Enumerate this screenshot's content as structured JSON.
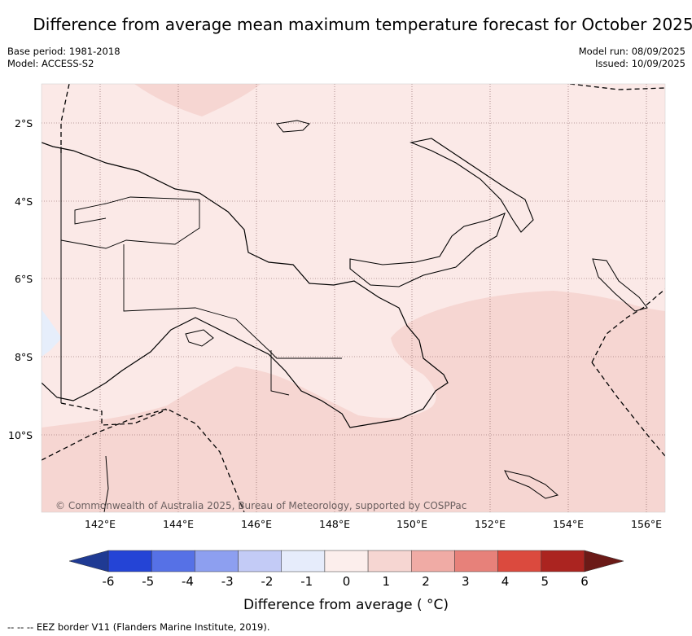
{
  "title": "Difference from average mean maximum temperature forecast for October 2025",
  "meta": {
    "base_period": "Base period: 1981-2018",
    "model": "Model: ACCESS-S2",
    "model_run": "Model run: 08/09/2025",
    "issued": "Issued: 10/09/2025"
  },
  "map": {
    "lat_labels": [
      "2°S",
      "4°S",
      "6°S",
      "8°S",
      "10°S"
    ],
    "lon_labels": [
      "142°E",
      "144°E",
      "146°E",
      "148°E",
      "150°E",
      "152°E",
      "154°E",
      "156°E"
    ],
    "copyright": "© Commonwealth of Australia 2025, Bureau of Meteorology, supported by COSPPac",
    "colors": {
      "anomaly_0_to_1": "#fbe9e7",
      "anomaly_1_to_2": "#f6d6d2",
      "anomaly_minus1_to_0": "#e6eefb"
    }
  },
  "colorbar": {
    "ticks": [
      "-6",
      "-5",
      "-4",
      "-3",
      "-2",
      "-1",
      "0",
      "1",
      "2",
      "3",
      "4",
      "5",
      "6"
    ],
    "colors": [
      "#1f3a93",
      "#2444d6",
      "#5671e6",
      "#8d9ff0",
      "#c3cbf6",
      "#e6ecfb",
      "#fceeec",
      "#f6d6d2",
      "#f0aba5",
      "#e7817a",
      "#db4a3e",
      "#ab2420",
      "#6b1a17"
    ],
    "label": "Difference from average ( °C)"
  },
  "footer": "-- -- -- EEZ border V11 (Flanders Marine Institute, 2019)."
}
